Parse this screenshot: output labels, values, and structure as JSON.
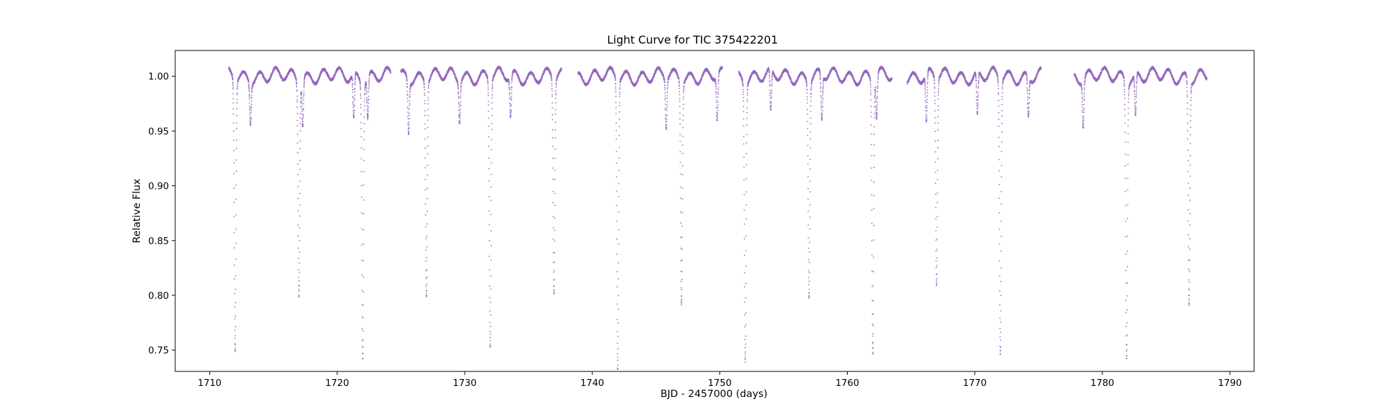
{
  "chart_data": {
    "type": "scatter",
    "title": "Light Curve for TIC 375422201",
    "xlabel": "BJD - 2457000 (days)",
    "ylabel": "Relative Flux",
    "xlim": [
      1707.3,
      1791.9
    ],
    "ylim": [
      0.7305,
      1.0235
    ],
    "x_ticks": [
      1710,
      1720,
      1730,
      1740,
      1750,
      1760,
      1770,
      1780,
      1790
    ],
    "y_ticks": [
      0.75,
      0.8,
      0.85,
      0.9,
      0.95,
      1.0
    ],
    "y_tick_labels": [
      "0.75",
      "0.80",
      "0.85",
      "0.90",
      "0.95",
      "1.00"
    ],
    "grid": false,
    "legend": "none",
    "color": "#9467bd",
    "baseline_flux": 1.0,
    "segments": [
      [
        1711.5,
        1724.2
      ],
      [
        1725.0,
        1737.6
      ],
      [
        1738.9,
        1750.2
      ],
      [
        1751.5,
        1763.5
      ],
      [
        1764.7,
        1775.2
      ],
      [
        1777.8,
        1788.2
      ]
    ],
    "primary_eclipses": [
      {
        "t": 1712.0,
        "min_flux": 0.753
      },
      {
        "t": 1722.0,
        "min_flux": 0.75
      },
      {
        "t": 1732.0,
        "min_flux": 0.757
      },
      {
        "t": 1742.0,
        "min_flux": 0.735
      },
      {
        "t": 1752.0,
        "min_flux": 0.748
      },
      {
        "t": 1762.0,
        "min_flux": 0.751
      },
      {
        "t": 1772.0,
        "min_flux": 0.75
      },
      {
        "t": 1781.9,
        "min_flux": 0.748
      }
    ],
    "secondary_eclipses": [
      {
        "t": 1717.0,
        "min_flux": 0.805
      },
      {
        "t": 1727.0,
        "min_flux": 0.805
      },
      {
        "t": 1737.0,
        "min_flux": 0.804
      },
      {
        "t": 1747.0,
        "min_flux": 0.799
      },
      {
        "t": 1757.0,
        "min_flux": 0.804
      },
      {
        "t": 1767.0,
        "min_flux": 0.812
      },
      {
        "t": 1786.8,
        "min_flux": 0.796
      }
    ],
    "shallow_dips": [
      {
        "t": 1713.2,
        "min_flux": 0.963
      },
      {
        "t": 1717.3,
        "min_flux": 0.958
      },
      {
        "t": 1721.3,
        "min_flux": 0.96
      },
      {
        "t": 1722.4,
        "min_flux": 0.962
      },
      {
        "t": 1725.6,
        "min_flux": 0.952
      },
      {
        "t": 1729.6,
        "min_flux": 0.963
      },
      {
        "t": 1733.6,
        "min_flux": 0.963
      },
      {
        "t": 1745.8,
        "min_flux": 0.955
      },
      {
        "t": 1749.8,
        "min_flux": 0.959
      },
      {
        "t": 1754.0,
        "min_flux": 0.962
      },
      {
        "t": 1758.0,
        "min_flux": 0.959
      },
      {
        "t": 1762.3,
        "min_flux": 0.961
      },
      {
        "t": 1766.2,
        "min_flux": 0.955
      },
      {
        "t": 1770.2,
        "min_flux": 0.961
      },
      {
        "t": 1774.2,
        "min_flux": 0.964
      },
      {
        "t": 1778.5,
        "min_flux": 0.958
      },
      {
        "t": 1782.6,
        "min_flux": 0.962
      }
    ]
  }
}
